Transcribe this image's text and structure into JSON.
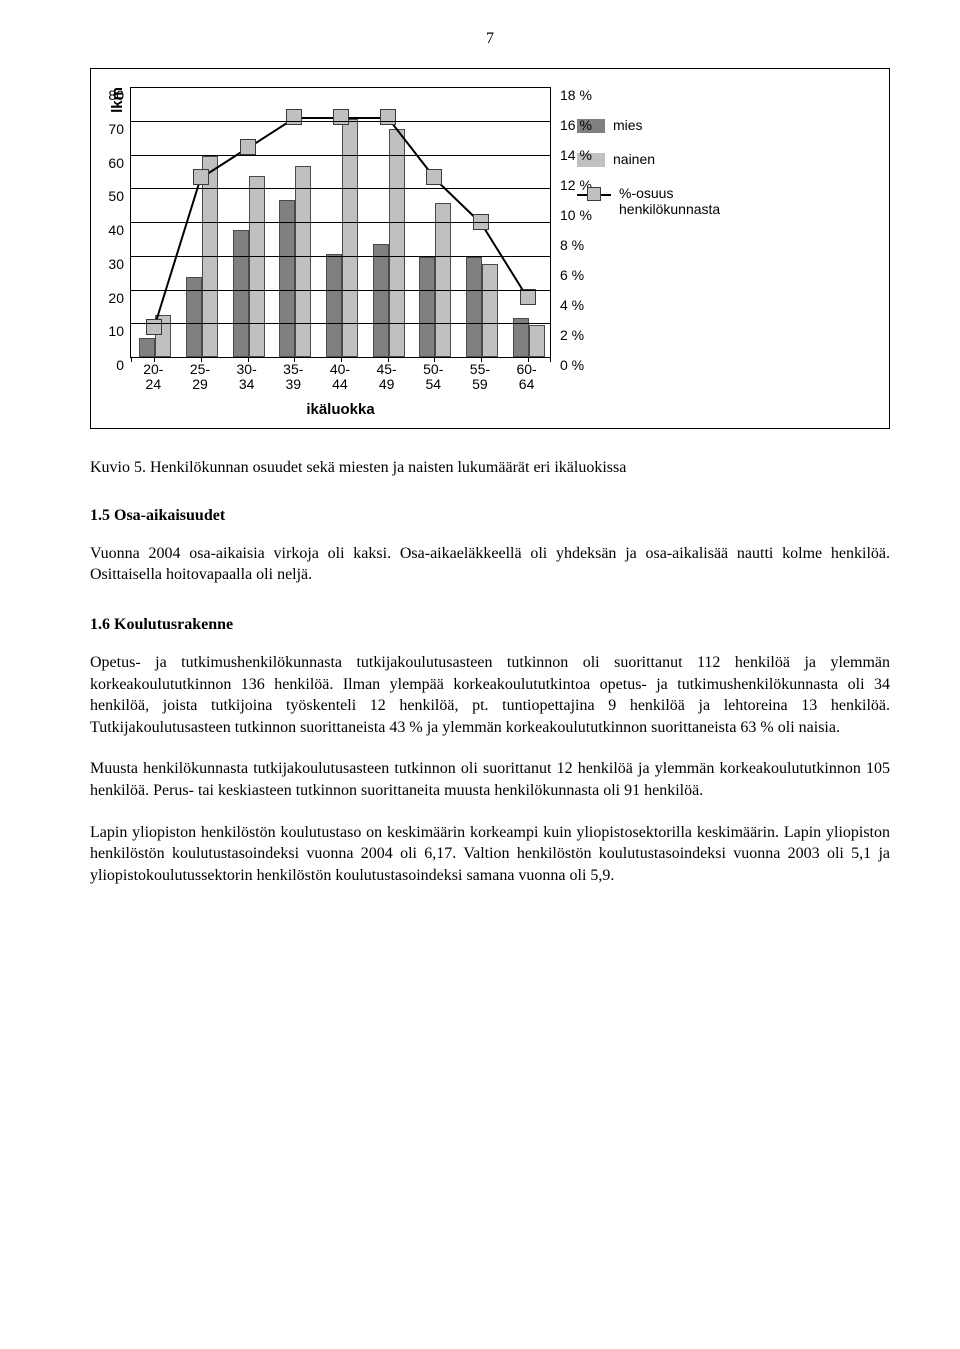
{
  "page_number": "7",
  "chart": {
    "type": "combo-bar-line",
    "y1_label": "lkm",
    "x_label": "ikäluokka",
    "categories": [
      "20-\n24",
      "25-\n29",
      "30-\n34",
      "35-\n39",
      "40-\n44",
      "45-\n49",
      "50-\n54",
      "55-\n59",
      "60-\n64"
    ],
    "y1_max": 80,
    "y1_ticks": [
      0,
      10,
      20,
      30,
      40,
      50,
      60,
      70,
      80
    ],
    "y2_max": 18,
    "y2_ticks": [
      "0 %",
      "2 %",
      "4 %",
      "6 %",
      "8 %",
      "10 %",
      "12 %",
      "14 %",
      "16 %",
      "18 %"
    ],
    "series_mies": [
      5,
      23,
      37,
      46,
      30,
      33,
      29,
      29,
      11
    ],
    "series_nainen": [
      12,
      59,
      53,
      56,
      70,
      67,
      45,
      27,
      9
    ],
    "series_line_pct": [
      2,
      12,
      14,
      16,
      16,
      16,
      12,
      9,
      4
    ],
    "colors": {
      "mies": "#808080",
      "nainen": "#c0c0c0",
      "marker_fill": "#c0c0c0",
      "marker_border": "#3a3a3a",
      "line": "#000000",
      "grid": "#000000",
      "background": "#ffffff"
    },
    "legend": {
      "mies": "mies",
      "nainen": "nainen",
      "line": "%-osuus henkilökunnasta"
    }
  },
  "caption": "Kuvio 5. Henkilökunnan osuudet sekä miesten ja naisten lukumäärät eri ikäluokissa",
  "section1_title": "1.5 Osa-aikaisuudet",
  "section1_body": "Vuonna 2004 osa-aikaisia virkoja oli kaksi. Osa-aikaeläkkeellä oli yhdeksän ja osa-aikalisää nautti kolme henkilöä. Osittaisella hoitovapaalla oli neljä.",
  "section2_title": "1.6 Koulutusrakenne",
  "section2_p1": "Opetus- ja tutkimushenkilökunnasta tutkijakoulutusasteen tutkinnon oli suorittanut 112 henkilöä ja ylemmän korkeakoulututkinnon 136 henkilöä. Ilman ylempää korkeakoulututkintoa opetus- ja tutkimushenkilökunnasta oli 34 henkilöä, joista tutkijoina työskenteli 12 henkilöä, pt. tuntiopettajina 9 henkilöä ja lehtoreina 13 henkilöä. Tutkijakoulutusasteen tutkinnon suorittaneista 43 % ja ylemmän korkeakoulututkinnon suorittaneista 63 % oli naisia.",
  "section2_p2": "Muusta henkilökunnasta tutkijakoulutusasteen tutkinnon oli suorittanut 12 henkilöä ja ylemmän korkeakoulututkinnon 105 henkilöä. Perus- tai keskiasteen tutkinnon suorittaneita muusta henkilökunnasta oli 91 henkilöä.",
  "section2_p3": "Lapin yliopiston henkilöstön koulutustaso on keskimäärin korkeampi kuin yliopistosektorilla keskimäärin. Lapin yliopiston henkilöstön koulutustasoindeksi vuonna 2004 oli 6,17. Valtion henkilöstön koulutustasoindeksi vuonna 2003 oli 5,1 ja yliopistokoulutussektorin henkilöstön koulutustasoindeksi samana vuonna oli 5,9."
}
